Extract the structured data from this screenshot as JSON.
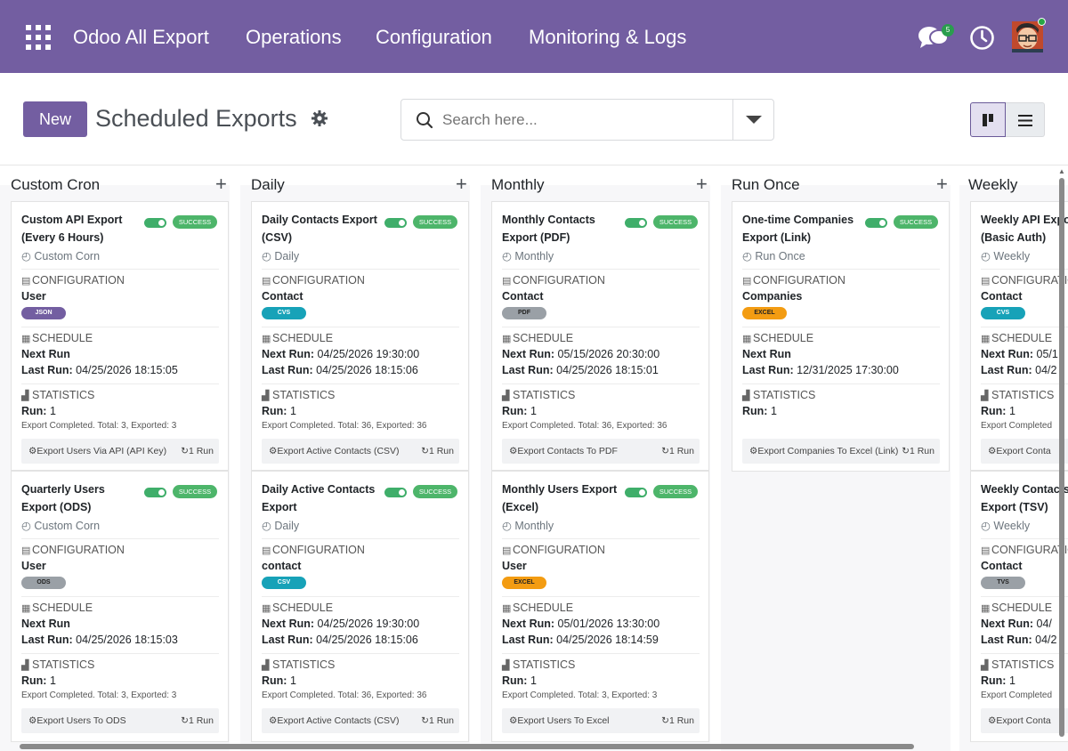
{
  "navbar": {
    "brand": "Odoo All Export",
    "menus": [
      "Operations",
      "Configuration",
      "Monitoring & Logs"
    ],
    "chat_count": "5"
  },
  "control": {
    "new_label": "New",
    "title": "Scheduled Exports",
    "search_placeholder": "Search here..."
  },
  "columns": [
    {
      "title": "Custom Cron",
      "cards": [
        {
          "title": "Custom API Export (Every 6 Hours)",
          "status": "SUCCESS",
          "frequency": "Custom Corn",
          "config_label": "CONFIGURATION",
          "model": "User",
          "format": "JSON",
          "schedule_label": "SCHEDULE",
          "next_run_label": "Next Run",
          "next_run": "",
          "last_run_label": "Last Run:",
          "last_run": "04/25/2026 18:15:05",
          "stats_label": "STATISTICS",
          "run_label": "Run:",
          "run": "1",
          "note": "Export Completed. Total: 3, Exported: 3",
          "action": "Export Users Via API (API Key)",
          "runs": "1 Run"
        },
        {
          "title": "Quarterly Users Export (ODS)",
          "status": "SUCCESS",
          "frequency": "Custom Corn",
          "config_label": "CONFIGURATION",
          "model": "User",
          "format": "ODS",
          "schedule_label": "SCHEDULE",
          "next_run_label": "Next Run",
          "next_run": "",
          "last_run_label": "Last Run:",
          "last_run": " 04/25/2026 18:15:03",
          "stats_label": "STATISTICS",
          "run_label": "Run:",
          "run": "1",
          "note": "Export Completed. Total: 3, Exported: 3",
          "action": "Export Users To ODS",
          "runs": "1 Run"
        }
      ]
    },
    {
      "title": "Daily",
      "cards": [
        {
          "title": "Daily Contacts Export (CSV)",
          "status": "SUCCESS",
          "frequency": "Daily",
          "config_label": "CONFIGURATION",
          "model": "Contact",
          "format": "CVS",
          "schedule_label": "SCHEDULE",
          "next_run_label": "Next Run:",
          "next_run": "04/25/2026 19:30:00",
          "last_run_label": "Last Run:",
          "last_run": "04/25/2026 18:15:06",
          "stats_label": "STATISTICS",
          "run_label": "Run:",
          "run": "1",
          "note": "Export Completed. Total: 36, Exported: 36",
          "action": "Export Active Contacts (CSV)",
          "runs": "1 Run"
        },
        {
          "title": "Daily Active Contacts Export",
          "status": "SUCCESS",
          "frequency": "Daily",
          "config_label": "CONFIGURATION",
          "model": "contact",
          "format": "CSV",
          "schedule_label": "SCHEDULE",
          "next_run_label": "Next Run:",
          "next_run": "04/25/2026 19:30:00",
          "last_run_label": "Last Run:",
          "last_run": "04/25/2026 18:15:06",
          "stats_label": "STATISTICS",
          "run_label": "Run:",
          "run": "1",
          "note": "Export Completed. Total: 36, Exported: 36",
          "action": "Export Active Contacts (CSV)",
          "runs": "1 Run"
        }
      ]
    },
    {
      "title": "Monthly",
      "cards": [
        {
          "title": "Monthly Contacts Export (PDF)",
          "status": "SUCCESS",
          "frequency": "Monthly",
          "config_label": "CONFIGURATION",
          "model": "Contact",
          "format": "PDF",
          "schedule_label": "SCHEDULE",
          "next_run_label": "Next Run:",
          "next_run": "05/15/2026 20:30:00",
          "last_run_label": "Last Run:",
          "last_run": " 04/25/2026 18:15:01",
          "stats_label": "STATISTICS",
          "run_label": "Run:",
          "run": "1",
          "note": "Export Completed. Total: 36, Exported: 36",
          "action": "Export Contacts To PDF",
          "runs": "1 Run"
        },
        {
          "title": "Monthly Users Export (Excel)",
          "status": "SUCCESS",
          "frequency": "Monthly",
          "config_label": "CONFIGURATION",
          "model": "User",
          "format": "EXCEL",
          "schedule_label": "SCHEDULE",
          "next_run_label": "Next Run:",
          "next_run": "05/01/2026 13:30:00",
          "last_run_label": "Last Run:",
          "last_run": "04/25/2026 18:14:59",
          "stats_label": "STATISTICS",
          "run_label": "Run:",
          "run": "1",
          "note": "Export Completed. Total: 3, Exported: 3",
          "action": "Export Users To Excel",
          "runs": "1 Run"
        }
      ]
    },
    {
      "title": "Run Once",
      "cards": [
        {
          "title": "One-time Companies Export (Link)",
          "status": "SUCCESS",
          "frequency": "Run Once",
          "config_label": "CONFIGURATION",
          "model": "Companies",
          "format": "EXCEL",
          "schedule_label": "SCHEDULE",
          "next_run_label": "Next Run",
          "next_run": "",
          "last_run_label": "Last Run:",
          "last_run": "12/31/2025 17:30:00",
          "stats_label": "STATISTICS",
          "run_label": "Run:",
          "run": "1",
          "note": "",
          "action": "Export Companies To Excel (Link)",
          "runs": "1 Run"
        }
      ]
    },
    {
      "title": "Weekly",
      "cards": [
        {
          "title": "Weekly API Export (Basic Auth)",
          "status": "SUCCESS",
          "frequency": "Weekly",
          "config_label": "CONFIGURATION",
          "model": "Contact",
          "format": "CVS",
          "schedule_label": "SCHEDULE",
          "next_run_label": "Next Run:",
          "next_run": "05/1",
          "last_run_label": "Last Run:",
          "last_run": "04/2",
          "stats_label": "STATISTICS",
          "run_label": "Run:",
          "run": "1",
          "note": "Export Completed",
          "action": "Export Conta",
          "runs": ""
        },
        {
          "title": "Weekly Contacts Export (TSV)",
          "status": "SUCCESS",
          "frequency": "Weekly",
          "config_label": "CONFIGURATION",
          "model": "Contact",
          "format": "TVS",
          "schedule_label": "SCHEDULE",
          "next_run_label": "Next Run:",
          "next_run": "04/",
          "last_run_label": "Last Run:",
          "last_run": "04/2",
          "stats_label": "STATISTICS",
          "run_label": "Run:",
          "run": "1",
          "note": "Export Completed",
          "action": "Export Conta",
          "runs": ""
        }
      ]
    }
  ],
  "colors": {
    "brand": "#735ea1",
    "success": "#4db56a",
    "json": "#735ea1",
    "csv": "#17a2b8",
    "gray": "#9aa0a6",
    "excel": "#f39c12"
  }
}
